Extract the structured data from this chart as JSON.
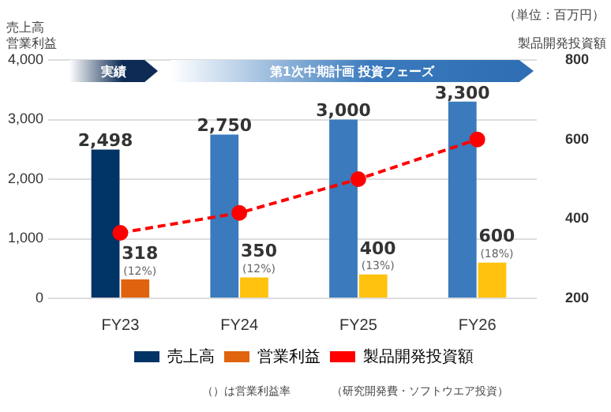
{
  "chart_data": {
    "type": "bar",
    "ylabel": "売上高\n営業利益",
    "y2label": "製品開発投資額",
    "categories": [
      "FY23",
      "FY24",
      "FY25",
      "FY26"
    ],
    "series": [
      {
        "name": "売上高",
        "colors": [
          "#003366",
          "#3a7abd",
          "#3a7abd",
          "#3a7abd"
        ],
        "values": [
          2498,
          2750,
          3000,
          3300
        ],
        "value_labels": [
          "2,498",
          "2,750",
          "3,000",
          "3,300"
        ]
      },
      {
        "name": "営業利益",
        "colors": [
          "#e0640f",
          "#ffc20e",
          "#ffc20e",
          "#ffc20e"
        ],
        "values": [
          318,
          350,
          400,
          600
        ],
        "value_labels": [
          "318",
          "350",
          "400",
          "600"
        ]
      },
      {
        "name": "製品開発投資額",
        "type": "line",
        "axis": "y2",
        "color": "#ff0000",
        "values": [
          365,
          415,
          500,
          600
        ]
      }
    ],
    "ylim": [
      0,
      4000
    ],
    "yticks": [
      0,
      {
        "value": 1000,
        "label": "1,000"
      },
      {
        "value": 2000,
        "label": "2,000"
      },
      {
        "value": 3000,
        "label": "3,000"
      },
      {
        "value": 4000,
        "label": "4,000"
      }
    ],
    "y2lim": [
      200,
      800
    ],
    "y2ticks": [
      200,
      400,
      600,
      800
    ],
    "grid": "y",
    "legend": "bottom",
    "marker": "circle",
    "line_style": "dashed",
    "annotations": [
      "（単位：百万円）",
      "実績",
      "第1次中期計画  投資フェーズ",
      "（）は営業利益率",
      "（研究開発費・ソフトウエア投資）",
      {
        "text": "(12%)",
        "x": "FY23",
        "y": 318
      },
      {
        "text": "(12%)",
        "x": "FY24",
        "y": 350
      },
      {
        "text": "(13%)",
        "x": "FY25",
        "y": 400
      },
      {
        "text": "(18%)",
        "x": "FY26",
        "y": 600
      }
    ]
  }
}
